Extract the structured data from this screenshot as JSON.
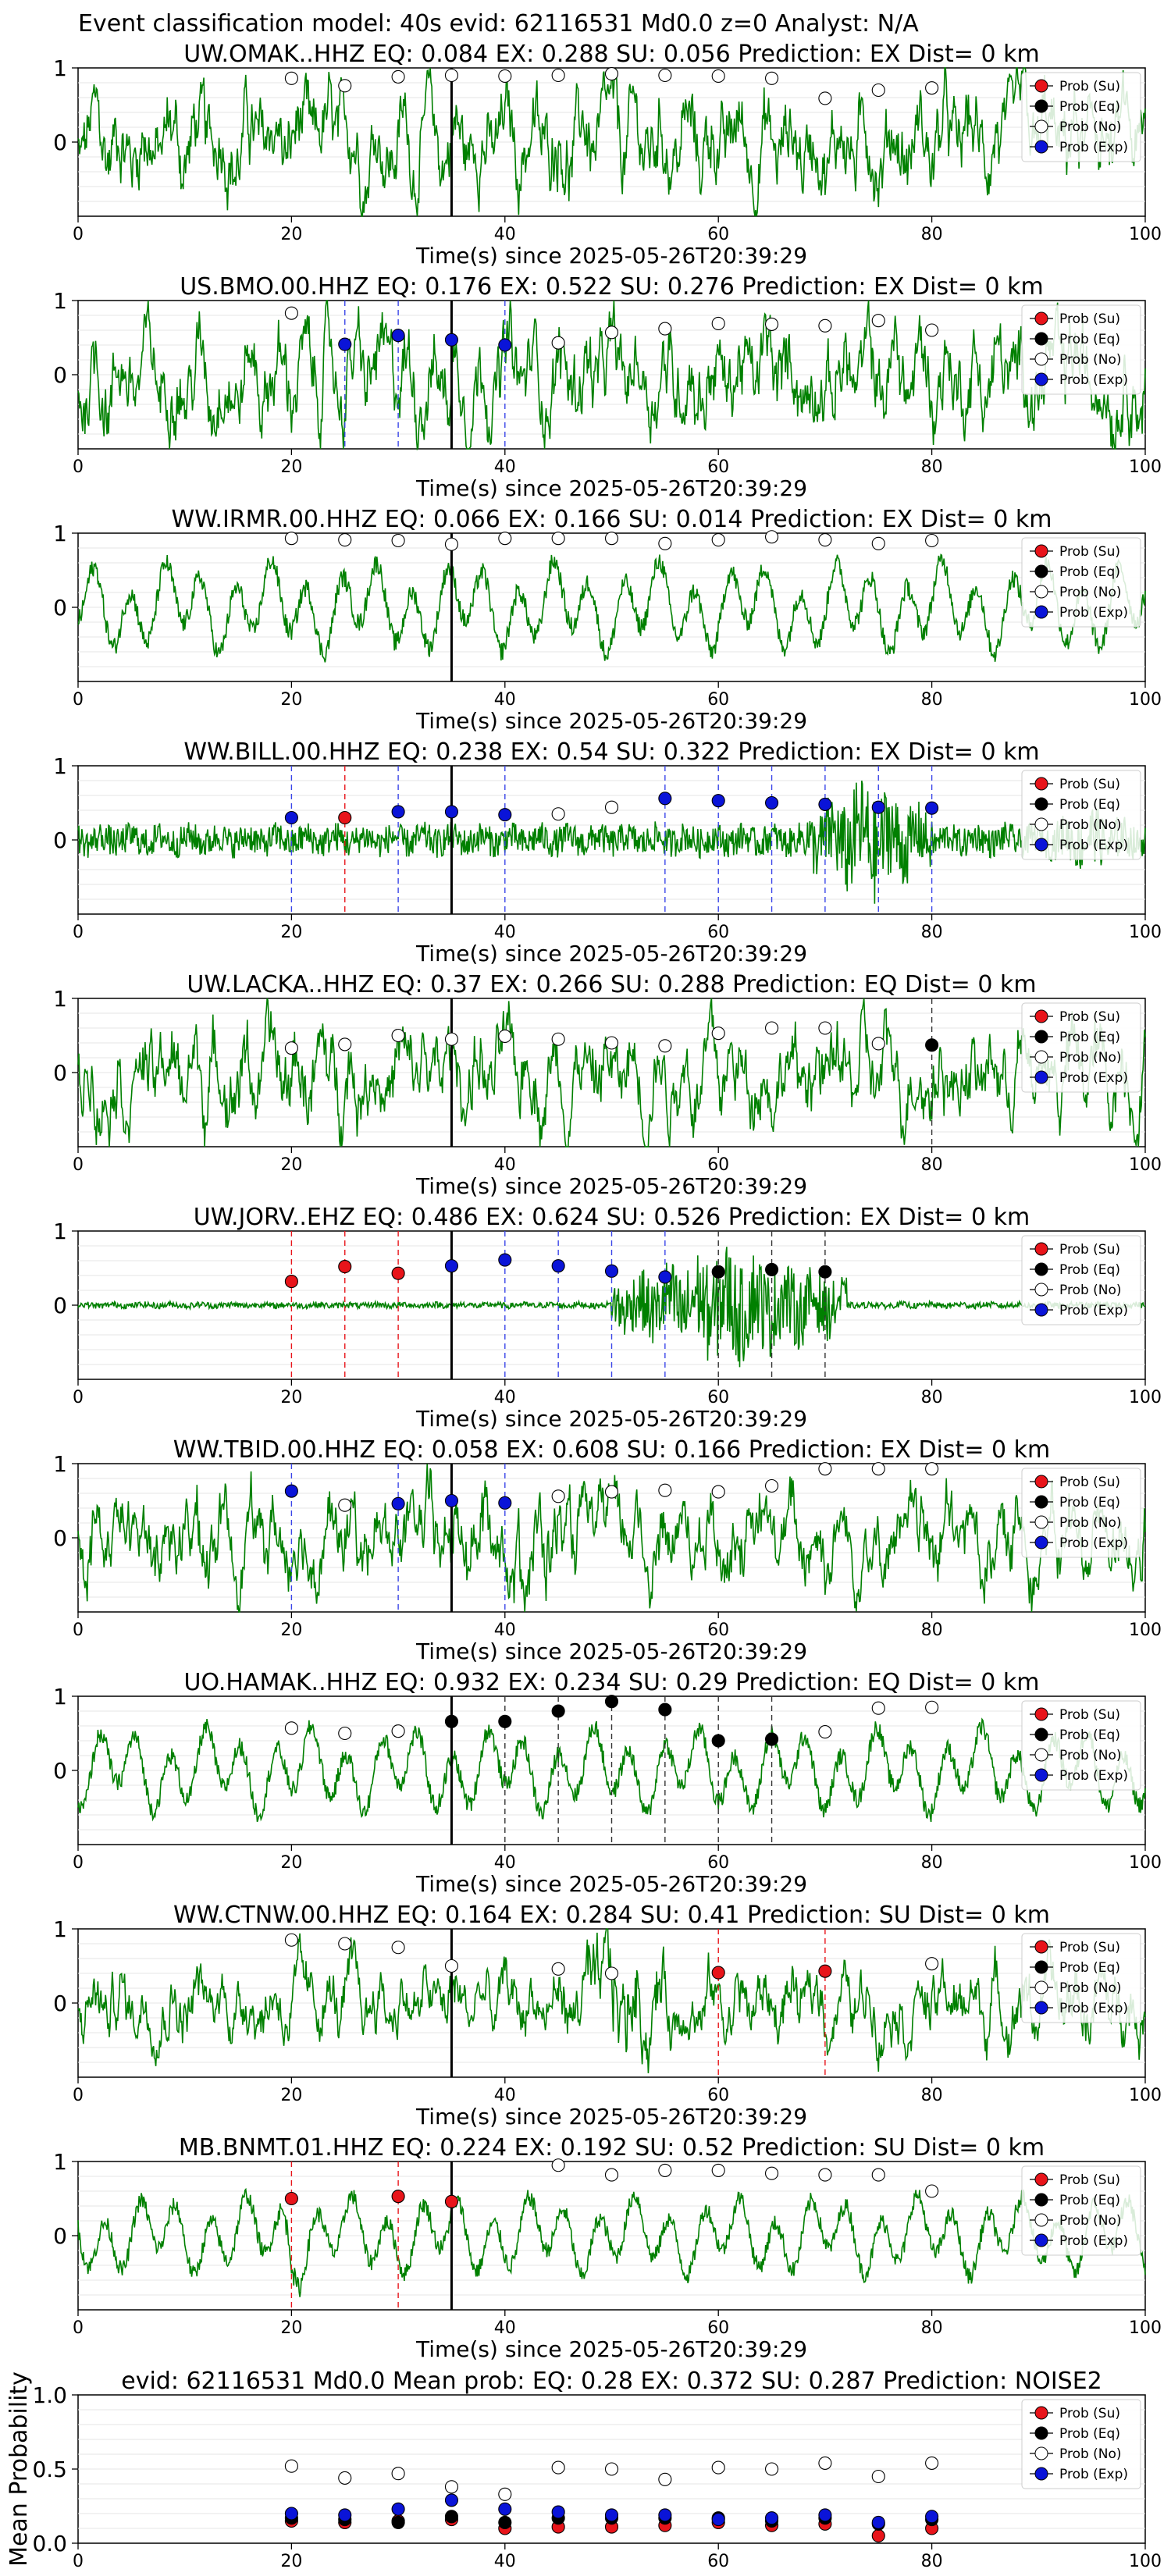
{
  "figure": {
    "suptitle": "Event classification model: 40s evid: 62116531 Md0.0 z=0 Analyst: N/A",
    "xlabel": "Time(s) since 2025-05-26T20:39:29",
    "legend": [
      "Prob (Su)",
      "Prob (Eq)",
      "Prob (No)",
      "Prob (Exp)"
    ],
    "colors": {
      "su": "#e8141a",
      "eq": "#000000",
      "no": "#ffffff",
      "exp": "#0a14d8",
      "trace": "#008000",
      "onset": "#000000"
    }
  },
  "chart_data": [
    {
      "type": "line",
      "station": "UW.OMAK..HHZ",
      "title": "UW.OMAK..HHZ   EQ: 0.084  EX: 0.288  SU: 0.056   Prediction: EX    Dist= 0 km",
      "xlim": [
        0,
        100
      ],
      "ylim": [
        -1,
        1
      ],
      "yticks": [
        0,
        1
      ],
      "xticks": [
        0,
        20,
        40,
        60,
        80,
        100
      ],
      "onset": 35,
      "trace": "noisy",
      "amp": 0.7,
      "points": [
        {
          "x": 20,
          "y": 0.86,
          "c": "no"
        },
        {
          "x": 25,
          "y": 0.76,
          "c": "no"
        },
        {
          "x": 30,
          "y": 0.88,
          "c": "no"
        },
        {
          "x": 35,
          "y": 0.9,
          "c": "no"
        },
        {
          "x": 40,
          "y": 0.89,
          "c": "no"
        },
        {
          "x": 45,
          "y": 0.9,
          "c": "no"
        },
        {
          "x": 50,
          "y": 0.92,
          "c": "no"
        },
        {
          "x": 55,
          "y": 0.9,
          "c": "no"
        },
        {
          "x": 60,
          "y": 0.89,
          "c": "no"
        },
        {
          "x": 65,
          "y": 0.86,
          "c": "no"
        },
        {
          "x": 70,
          "y": 0.59,
          "c": "no"
        },
        {
          "x": 75,
          "y": 0.7,
          "c": "no"
        },
        {
          "x": 80,
          "y": 0.73,
          "c": "no"
        }
      ]
    },
    {
      "type": "line",
      "station": "US.BMO.00.HHZ",
      "title": "US.BMO.00.HHZ   EQ: 0.176  EX: 0.522  SU: 0.276   Prediction: EX    Dist= 0 km",
      "xlim": [
        0,
        100
      ],
      "ylim": [
        -1,
        1
      ],
      "yticks": [
        0,
        1
      ],
      "xticks": [
        0,
        20,
        40,
        60,
        80,
        100
      ],
      "onset": 35,
      "trace": "noisy",
      "amp": 0.7,
      "points": [
        {
          "x": 20,
          "y": 0.83,
          "c": "no"
        },
        {
          "x": 25,
          "y": 0.41,
          "c": "exp"
        },
        {
          "x": 30,
          "y": 0.53,
          "c": "exp"
        },
        {
          "x": 35,
          "y": 0.47,
          "c": "exp"
        },
        {
          "x": 40,
          "y": 0.4,
          "c": "exp"
        },
        {
          "x": 45,
          "y": 0.43,
          "c": "no"
        },
        {
          "x": 50,
          "y": 0.57,
          "c": "no"
        },
        {
          "x": 55,
          "y": 0.62,
          "c": "no"
        },
        {
          "x": 60,
          "y": 0.69,
          "c": "no"
        },
        {
          "x": 65,
          "y": 0.68,
          "c": "no"
        },
        {
          "x": 70,
          "y": 0.66,
          "c": "no"
        },
        {
          "x": 75,
          "y": 0.73,
          "c": "no"
        },
        {
          "x": 80,
          "y": 0.6,
          "c": "no"
        }
      ]
    },
    {
      "type": "line",
      "station": "WW.IRMR.00.HHZ",
      "title": "WW.IRMR.00.HHZ   EQ: 0.066  EX: 0.166  SU: 0.014   Prediction: EX    Dist= 0 km",
      "xlim": [
        0,
        100
      ],
      "ylim": [
        -1,
        1
      ],
      "yticks": [
        0,
        1
      ],
      "xticks": [
        0,
        20,
        40,
        60,
        80,
        100
      ],
      "onset": 35,
      "trace": "oscillating",
      "amp": 0.75,
      "points": [
        {
          "x": 20,
          "y": 0.93,
          "c": "no"
        },
        {
          "x": 25,
          "y": 0.91,
          "c": "no"
        },
        {
          "x": 30,
          "y": 0.9,
          "c": "no"
        },
        {
          "x": 35,
          "y": 0.85,
          "c": "no"
        },
        {
          "x": 40,
          "y": 0.93,
          "c": "no"
        },
        {
          "x": 45,
          "y": 0.93,
          "c": "no"
        },
        {
          "x": 50,
          "y": 0.93,
          "c": "no"
        },
        {
          "x": 55,
          "y": 0.86,
          "c": "no"
        },
        {
          "x": 60,
          "y": 0.91,
          "c": "no"
        },
        {
          "x": 65,
          "y": 0.95,
          "c": "no"
        },
        {
          "x": 70,
          "y": 0.91,
          "c": "no"
        },
        {
          "x": 75,
          "y": 0.86,
          "c": "no"
        },
        {
          "x": 80,
          "y": 0.9,
          "c": "no"
        }
      ]
    },
    {
      "type": "line",
      "station": "WW.BILL.00.HHZ",
      "title": "WW.BILL.00.HHZ   EQ: 0.238  EX: 0.54  SU: 0.322   Prediction: EX    Dist= 0 km",
      "xlim": [
        0,
        100
      ],
      "ylim": [
        -1,
        1
      ],
      "yticks": [
        0,
        1
      ],
      "xticks": [
        0,
        20,
        40,
        60,
        80,
        100
      ],
      "onset": 35,
      "trace": "burst",
      "amp": 0.25,
      "burst": [
        [
          68,
          80,
          0.95
        ],
        [
          90,
          100,
          0.5
        ]
      ],
      "points": [
        {
          "x": 20,
          "y": 0.3,
          "c": "exp"
        },
        {
          "x": 25,
          "y": 0.3,
          "c": "su"
        },
        {
          "x": 30,
          "y": 0.38,
          "c": "exp"
        },
        {
          "x": 35,
          "y": 0.38,
          "c": "exp"
        },
        {
          "x": 40,
          "y": 0.34,
          "c": "exp"
        },
        {
          "x": 45,
          "y": 0.35,
          "c": "no"
        },
        {
          "x": 50,
          "y": 0.44,
          "c": "no"
        },
        {
          "x": 55,
          "y": 0.56,
          "c": "exp"
        },
        {
          "x": 60,
          "y": 0.53,
          "c": "exp"
        },
        {
          "x": 65,
          "y": 0.5,
          "c": "exp"
        },
        {
          "x": 70,
          "y": 0.48,
          "c": "exp"
        },
        {
          "x": 75,
          "y": 0.44,
          "c": "exp"
        },
        {
          "x": 80,
          "y": 0.43,
          "c": "exp"
        }
      ]
    },
    {
      "type": "line",
      "station": "UW.LACKA..HHZ",
      "title": "UW.LACKA..HHZ   EQ: 0.37  EX: 0.266  SU: 0.288   Prediction: EQ    Dist= 0 km",
      "xlim": [
        0,
        100
      ],
      "ylim": [
        -1,
        1
      ],
      "yticks": [
        0,
        1
      ],
      "xticks": [
        0,
        20,
        40,
        60,
        80,
        100
      ],
      "onset": 35,
      "trace": "noisy",
      "amp": 0.65,
      "points": [
        {
          "x": 20,
          "y": 0.33,
          "c": "no"
        },
        {
          "x": 25,
          "y": 0.38,
          "c": "no"
        },
        {
          "x": 30,
          "y": 0.5,
          "c": "no"
        },
        {
          "x": 35,
          "y": 0.45,
          "c": "no"
        },
        {
          "x": 40,
          "y": 0.49,
          "c": "no"
        },
        {
          "x": 45,
          "y": 0.45,
          "c": "no"
        },
        {
          "x": 50,
          "y": 0.4,
          "c": "no"
        },
        {
          "x": 55,
          "y": 0.36,
          "c": "no"
        },
        {
          "x": 60,
          "y": 0.53,
          "c": "no"
        },
        {
          "x": 65,
          "y": 0.6,
          "c": "no"
        },
        {
          "x": 70,
          "y": 0.6,
          "c": "no"
        },
        {
          "x": 75,
          "y": 0.39,
          "c": "no"
        },
        {
          "x": 80,
          "y": 0.37,
          "c": "eq"
        }
      ]
    },
    {
      "type": "line",
      "station": "UW.JORV..EHZ",
      "title": "UW.JORV..EHZ   EQ: 0.486  EX: 0.624  SU: 0.526   Prediction: EX    Dist= 0 km",
      "xlim": [
        0,
        100
      ],
      "ylim": [
        -1,
        1
      ],
      "yticks": [
        0,
        1
      ],
      "xticks": [
        0,
        20,
        40,
        60,
        80,
        100
      ],
      "onset": 35,
      "trace": "burst",
      "amp": 0.05,
      "burst": [
        [
          50,
          72,
          0.9
        ]
      ],
      "points": [
        {
          "x": 20,
          "y": 0.32,
          "c": "su"
        },
        {
          "x": 25,
          "y": 0.52,
          "c": "su"
        },
        {
          "x": 30,
          "y": 0.43,
          "c": "su"
        },
        {
          "x": 35,
          "y": 0.53,
          "c": "exp"
        },
        {
          "x": 40,
          "y": 0.61,
          "c": "exp"
        },
        {
          "x": 45,
          "y": 0.53,
          "c": "exp"
        },
        {
          "x": 50,
          "y": 0.46,
          "c": "exp"
        },
        {
          "x": 55,
          "y": 0.38,
          "c": "exp"
        },
        {
          "x": 60,
          "y": 0.45,
          "c": "eq"
        },
        {
          "x": 65,
          "y": 0.48,
          "c": "eq"
        },
        {
          "x": 70,
          "y": 0.45,
          "c": "eq"
        }
      ]
    },
    {
      "type": "line",
      "station": "WW.TBID.00.HHZ",
      "title": "WW.TBID.00.HHZ   EQ: 0.058  EX: 0.608  SU: 0.166   Prediction: EX    Dist= 0 km",
      "xlim": [
        0,
        100
      ],
      "ylim": [
        -1,
        1
      ],
      "yticks": [
        0,
        1
      ],
      "xticks": [
        0,
        20,
        40,
        60,
        80,
        100
      ],
      "onset": 35,
      "trace": "noisy",
      "amp": 0.6,
      "burst": [
        [
          30,
          50,
          0.95
        ]
      ],
      "points": [
        {
          "x": 20,
          "y": 0.63,
          "c": "exp"
        },
        {
          "x": 25,
          "y": 0.44,
          "c": "no"
        },
        {
          "x": 30,
          "y": 0.46,
          "c": "exp"
        },
        {
          "x": 35,
          "y": 0.5,
          "c": "exp"
        },
        {
          "x": 40,
          "y": 0.47,
          "c": "exp"
        },
        {
          "x": 45,
          "y": 0.56,
          "c": "no"
        },
        {
          "x": 50,
          "y": 0.62,
          "c": "no"
        },
        {
          "x": 55,
          "y": 0.64,
          "c": "no"
        },
        {
          "x": 60,
          "y": 0.62,
          "c": "no"
        },
        {
          "x": 65,
          "y": 0.7,
          "c": "no"
        },
        {
          "x": 70,
          "y": 0.93,
          "c": "no"
        },
        {
          "x": 75,
          "y": 0.93,
          "c": "no"
        },
        {
          "x": 80,
          "y": 0.93,
          "c": "no"
        }
      ]
    },
    {
      "type": "line",
      "station": "UO.HAMAK..HHZ",
      "title": "UO.HAMAK..HHZ   EQ: 0.932  EX: 0.234  SU: 0.29   Prediction: EQ    Dist= 0 km",
      "xlim": [
        0,
        100
      ],
      "ylim": [
        -1,
        1
      ],
      "yticks": [
        0,
        1
      ],
      "xticks": [
        0,
        20,
        40,
        60,
        80,
        100
      ],
      "onset": 35,
      "trace": "oscillating",
      "amp": 0.7,
      "points": [
        {
          "x": 20,
          "y": 0.57,
          "c": "no"
        },
        {
          "x": 25,
          "y": 0.5,
          "c": "no"
        },
        {
          "x": 30,
          "y": 0.53,
          "c": "no"
        },
        {
          "x": 35,
          "y": 0.66,
          "c": "eq"
        },
        {
          "x": 40,
          "y": 0.66,
          "c": "eq"
        },
        {
          "x": 45,
          "y": 0.8,
          "c": "eq"
        },
        {
          "x": 50,
          "y": 0.93,
          "c": "eq"
        },
        {
          "x": 55,
          "y": 0.82,
          "c": "eq"
        },
        {
          "x": 60,
          "y": 0.4,
          "c": "eq"
        },
        {
          "x": 65,
          "y": 0.42,
          "c": "eq"
        },
        {
          "x": 70,
          "y": 0.52,
          "c": "no"
        },
        {
          "x": 75,
          "y": 0.84,
          "c": "no"
        },
        {
          "x": 80,
          "y": 0.85,
          "c": "no"
        }
      ]
    },
    {
      "type": "line",
      "station": "WW.CTNW.00.HHZ",
      "title": "WW.CTNW.00.HHZ   EQ: 0.164  EX: 0.284  SU: 0.41   Prediction: SU    Dist= 0 km",
      "xlim": [
        0,
        100
      ],
      "ylim": [
        -1,
        1
      ],
      "yticks": [
        0,
        1
      ],
      "xticks": [
        0,
        20,
        40,
        60,
        80,
        100
      ],
      "onset": 35,
      "trace": "noisy",
      "amp": 0.5,
      "burst": [
        [
          45,
          57,
          0.95
        ]
      ],
      "points": [
        {
          "x": 20,
          "y": 0.85,
          "c": "no"
        },
        {
          "x": 25,
          "y": 0.8,
          "c": "no"
        },
        {
          "x": 30,
          "y": 0.75,
          "c": "no"
        },
        {
          "x": 35,
          "y": 0.5,
          "c": "no"
        },
        {
          "x": 45,
          "y": 0.46,
          "c": "no"
        },
        {
          "x": 50,
          "y": 0.4,
          "c": "no"
        },
        {
          "x": 60,
          "y": 0.41,
          "c": "su"
        },
        {
          "x": 70,
          "y": 0.43,
          "c": "su"
        },
        {
          "x": 80,
          "y": 0.53,
          "c": "no"
        }
      ]
    },
    {
      "type": "line",
      "station": "MB.BNMT.01.HHZ",
      "title": "MB.BNMT.01.HHZ   EQ: 0.224  EX: 0.192  SU: 0.52   Prediction: SU    Dist= 0 km",
      "xlim": [
        0,
        100
      ],
      "ylim": [
        -1,
        1
      ],
      "yticks": [
        0,
        1
      ],
      "xticks": [
        0,
        20,
        40,
        60,
        80,
        100
      ],
      "onset": 35,
      "trace": "oscillating",
      "amp": 0.65,
      "burst": [
        [
          17,
          23,
          0.95
        ]
      ],
      "points": [
        {
          "x": 20,
          "y": 0.5,
          "c": "su"
        },
        {
          "x": 30,
          "y": 0.53,
          "c": "su"
        },
        {
          "x": 35,
          "y": 0.46,
          "c": "su"
        },
        {
          "x": 45,
          "y": 0.95,
          "c": "no"
        },
        {
          "x": 50,
          "y": 0.82,
          "c": "no"
        },
        {
          "x": 55,
          "y": 0.88,
          "c": "no"
        },
        {
          "x": 60,
          "y": 0.88,
          "c": "no"
        },
        {
          "x": 65,
          "y": 0.84,
          "c": "no"
        },
        {
          "x": 70,
          "y": 0.82,
          "c": "no"
        },
        {
          "x": 75,
          "y": 0.82,
          "c": "no"
        },
        {
          "x": 80,
          "y": 0.6,
          "c": "no"
        }
      ]
    },
    {
      "type": "scatter",
      "station": "mean",
      "title": "evid: 62116531  Md0.0   Mean prob:   EQ: 0.28  EX: 0.372  SU: 0.287   Prediction: NOISE2",
      "ylabel": "Mean Probability",
      "xlim": [
        0,
        100
      ],
      "ylim": [
        0,
        1
      ],
      "yticks": [
        0,
        0.5,
        1
      ],
      "ytick_labels": [
        "0.0",
        "0.5",
        "1.0"
      ],
      "xticks": [
        0,
        20,
        40,
        60,
        80,
        100
      ],
      "grid": true,
      "x": [
        20,
        25,
        30,
        35,
        40,
        45,
        50,
        55,
        60,
        65,
        70,
        75,
        80
      ],
      "series": [
        {
          "name": "Prob (Su)",
          "key": "su",
          "values": [
            0.15,
            0.14,
            0.15,
            0.16,
            0.1,
            0.11,
            0.11,
            0.12,
            0.14,
            0.12,
            0.13,
            0.05,
            0.1
          ]
        },
        {
          "name": "Prob (Eq)",
          "key": "eq",
          "values": [
            0.17,
            0.16,
            0.14,
            0.18,
            0.14,
            0.17,
            0.17,
            0.17,
            0.17,
            0.15,
            0.17,
            0.13,
            0.16
          ]
        },
        {
          "name": "Prob (No)",
          "key": "no",
          "values": [
            0.52,
            0.44,
            0.47,
            0.38,
            0.33,
            0.51,
            0.5,
            0.43,
            0.51,
            0.5,
            0.54,
            0.45,
            0.54
          ]
        },
        {
          "name": "Prob (Exp)",
          "key": "exp",
          "values": [
            0.2,
            0.19,
            0.23,
            0.29,
            0.23,
            0.21,
            0.19,
            0.19,
            0.16,
            0.17,
            0.19,
            0.14,
            0.18
          ]
        }
      ]
    }
  ]
}
